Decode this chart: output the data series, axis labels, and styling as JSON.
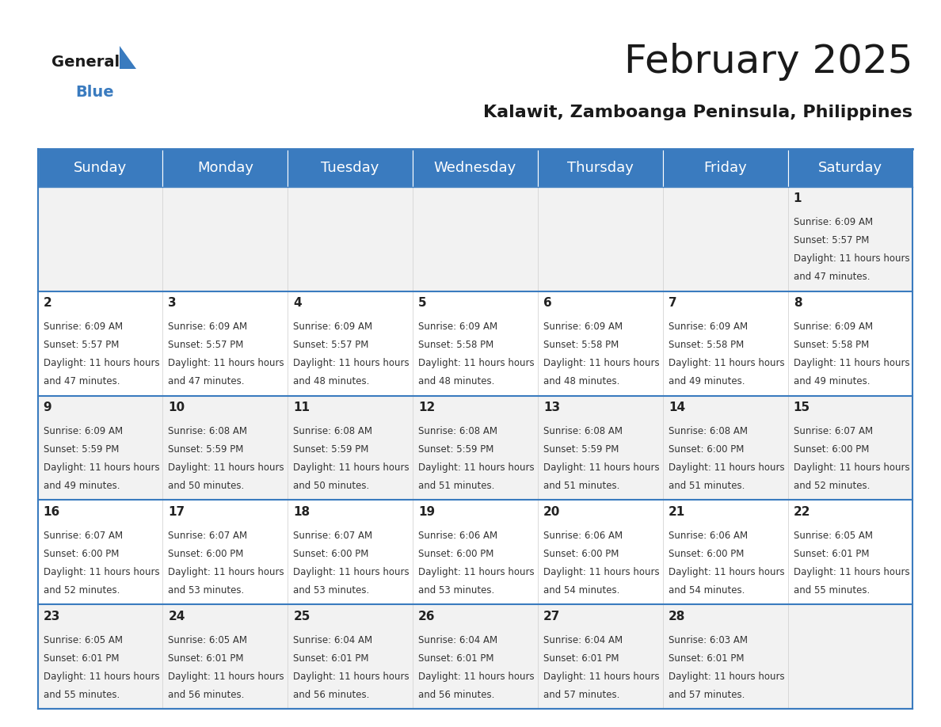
{
  "title": "February 2025",
  "subtitle": "Kalawit, Zamboanga Peninsula, Philippines",
  "header_color": "#3a7bbf",
  "header_text_color": "#ffffff",
  "background_color": "#ffffff",
  "days_of_week": [
    "Sunday",
    "Monday",
    "Tuesday",
    "Wednesday",
    "Thursday",
    "Friday",
    "Saturday"
  ],
  "title_fontsize": 36,
  "subtitle_fontsize": 16,
  "header_fontsize": 13,
  "day_num_fontsize": 11,
  "info_fontsize": 8.5,
  "calendar_data": [
    [
      {
        "day": 0,
        "sunrise": "",
        "sunset": "",
        "daylight": ""
      },
      {
        "day": 0,
        "sunrise": "",
        "sunset": "",
        "daylight": ""
      },
      {
        "day": 0,
        "sunrise": "",
        "sunset": "",
        "daylight": ""
      },
      {
        "day": 0,
        "sunrise": "",
        "sunset": "",
        "daylight": ""
      },
      {
        "day": 0,
        "sunrise": "",
        "sunset": "",
        "daylight": ""
      },
      {
        "day": 0,
        "sunrise": "",
        "sunset": "",
        "daylight": ""
      },
      {
        "day": 1,
        "sunrise": "6:09 AM",
        "sunset": "5:57 PM",
        "daylight": "11 hours and 47 minutes."
      }
    ],
    [
      {
        "day": 2,
        "sunrise": "6:09 AM",
        "sunset": "5:57 PM",
        "daylight": "11 hours and 47 minutes."
      },
      {
        "day": 3,
        "sunrise": "6:09 AM",
        "sunset": "5:57 PM",
        "daylight": "11 hours and 47 minutes."
      },
      {
        "day": 4,
        "sunrise": "6:09 AM",
        "sunset": "5:57 PM",
        "daylight": "11 hours and 48 minutes."
      },
      {
        "day": 5,
        "sunrise": "6:09 AM",
        "sunset": "5:58 PM",
        "daylight": "11 hours and 48 minutes."
      },
      {
        "day": 6,
        "sunrise": "6:09 AM",
        "sunset": "5:58 PM",
        "daylight": "11 hours and 48 minutes."
      },
      {
        "day": 7,
        "sunrise": "6:09 AM",
        "sunset": "5:58 PM",
        "daylight": "11 hours and 49 minutes."
      },
      {
        "day": 8,
        "sunrise": "6:09 AM",
        "sunset": "5:58 PM",
        "daylight": "11 hours and 49 minutes."
      }
    ],
    [
      {
        "day": 9,
        "sunrise": "6:09 AM",
        "sunset": "5:59 PM",
        "daylight": "11 hours and 49 minutes."
      },
      {
        "day": 10,
        "sunrise": "6:08 AM",
        "sunset": "5:59 PM",
        "daylight": "11 hours and 50 minutes."
      },
      {
        "day": 11,
        "sunrise": "6:08 AM",
        "sunset": "5:59 PM",
        "daylight": "11 hours and 50 minutes."
      },
      {
        "day": 12,
        "sunrise": "6:08 AM",
        "sunset": "5:59 PM",
        "daylight": "11 hours and 51 minutes."
      },
      {
        "day": 13,
        "sunrise": "6:08 AM",
        "sunset": "5:59 PM",
        "daylight": "11 hours and 51 minutes."
      },
      {
        "day": 14,
        "sunrise": "6:08 AM",
        "sunset": "6:00 PM",
        "daylight": "11 hours and 51 minutes."
      },
      {
        "day": 15,
        "sunrise": "6:07 AM",
        "sunset": "6:00 PM",
        "daylight": "11 hours and 52 minutes."
      }
    ],
    [
      {
        "day": 16,
        "sunrise": "6:07 AM",
        "sunset": "6:00 PM",
        "daylight": "11 hours and 52 minutes."
      },
      {
        "day": 17,
        "sunrise": "6:07 AM",
        "sunset": "6:00 PM",
        "daylight": "11 hours and 53 minutes."
      },
      {
        "day": 18,
        "sunrise": "6:07 AM",
        "sunset": "6:00 PM",
        "daylight": "11 hours and 53 minutes."
      },
      {
        "day": 19,
        "sunrise": "6:06 AM",
        "sunset": "6:00 PM",
        "daylight": "11 hours and 53 minutes."
      },
      {
        "day": 20,
        "sunrise": "6:06 AM",
        "sunset": "6:00 PM",
        "daylight": "11 hours and 54 minutes."
      },
      {
        "day": 21,
        "sunrise": "6:06 AM",
        "sunset": "6:00 PM",
        "daylight": "11 hours and 54 minutes."
      },
      {
        "day": 22,
        "sunrise": "6:05 AM",
        "sunset": "6:01 PM",
        "daylight": "11 hours and 55 minutes."
      }
    ],
    [
      {
        "day": 23,
        "sunrise": "6:05 AM",
        "sunset": "6:01 PM",
        "daylight": "11 hours and 55 minutes."
      },
      {
        "day": 24,
        "sunrise": "6:05 AM",
        "sunset": "6:01 PM",
        "daylight": "11 hours and 56 minutes."
      },
      {
        "day": 25,
        "sunrise": "6:04 AM",
        "sunset": "6:01 PM",
        "daylight": "11 hours and 56 minutes."
      },
      {
        "day": 26,
        "sunrise": "6:04 AM",
        "sunset": "6:01 PM",
        "daylight": "11 hours and 56 minutes."
      },
      {
        "day": 27,
        "sunrise": "6:04 AM",
        "sunset": "6:01 PM",
        "daylight": "11 hours and 57 minutes."
      },
      {
        "day": 28,
        "sunrise": "6:03 AM",
        "sunset": "6:01 PM",
        "daylight": "11 hours and 57 minutes."
      },
      {
        "day": 0,
        "sunrise": "",
        "sunset": "",
        "daylight": ""
      }
    ]
  ]
}
